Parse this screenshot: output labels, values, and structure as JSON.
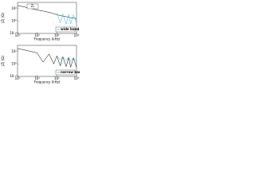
{
  "chart_data": [
    {
      "type": "line",
      "x_label": "Frequency (kHz)",
      "y_label": "|Z| (Ω)",
      "annotation": "Zₐ",
      "x_log": true,
      "y_log": true,
      "legend": "lower-right",
      "xlim": [
        1,
        1000
      ],
      "xticks": [
        {
          "value": 1,
          "label": "10⁰"
        },
        {
          "value": 10,
          "label": "10¹"
        },
        {
          "value": 100,
          "label": "10²"
        },
        {
          "value": 1000,
          "label": "10³"
        }
      ],
      "ylim": [
        0.01,
        1000
      ],
      "yticks": [
        {
          "value": 0.01,
          "label": "10⁻²"
        },
        {
          "value": 1,
          "label": "10⁰"
        },
        {
          "value": 100,
          "label": "10²"
        }
      ],
      "x": [
        1,
        2,
        4,
        7,
        10,
        20,
        40,
        70,
        100,
        150,
        200,
        300,
        400,
        500,
        700,
        1000
      ],
      "series": [
        {
          "color": "#000000",
          "values": [
            300,
            200,
            120,
            80,
            60,
            40,
            25,
            15,
            10,
            8,
            6,
            5,
            4,
            3.5,
            3,
            2.5
          ]
        },
        {
          "name": "wide band",
          "color": "#33bbdd",
          "values": [
            null,
            null,
            null,
            null,
            null,
            null,
            null,
            null,
            20,
            0.5,
            15,
            0.3,
            12,
            0.4,
            10,
            0.5
          ]
        }
      ]
    },
    {
      "type": "line",
      "x_label": "Frequency (kHz)",
      "y_label": "|Z| (Ω)",
      "x_log": true,
      "y_log": true,
      "legend": "lower-right",
      "xlim": [
        1,
        1000
      ],
      "xticks": [
        {
          "value": 1,
          "label": "10⁰"
        },
        {
          "value": 10,
          "label": "10¹"
        },
        {
          "value": 100,
          "label": "10²"
        },
        {
          "value": 1000,
          "label": "10³"
        }
      ],
      "ylim": [
        0.01,
        1000
      ],
      "yticks": [
        {
          "value": 0.01,
          "label": "10⁻²"
        },
        {
          "value": 1,
          "label": "10⁰"
        },
        {
          "value": 100,
          "label": "10²"
        }
      ],
      "x": [
        1,
        2,
        4,
        7,
        10,
        20,
        40,
        70,
        100,
        150,
        200,
        300,
        400,
        500,
        700,
        1000
      ],
      "series": [
        {
          "color": "#000000",
          "values": [
            300,
            200,
            120,
            80,
            60,
            2,
            40,
            1,
            20,
            0.5,
            15,
            0.4,
            12,
            0.3,
            10,
            0.3
          ]
        },
        {
          "name": "narrow band",
          "color": "#33bbdd",
          "values": [
            null,
            null,
            null,
            null,
            null,
            null,
            null,
            null,
            20,
            5,
            15,
            4,
            12,
            3,
            10,
            3
          ]
        }
      ]
    }
  ]
}
